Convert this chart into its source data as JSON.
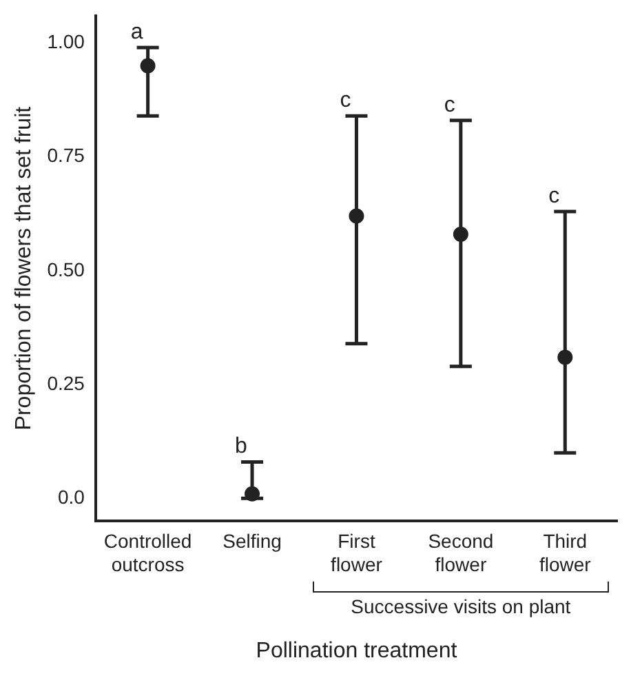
{
  "chart_data": {
    "type": "scatter",
    "xlabel": "Pollination treatment",
    "ylabel": "Proportion of flowers that set fruit",
    "categories": [
      "Controlled\noutcross",
      "Selfing",
      "First\nflower",
      "Second\nflower",
      "Third\nflower"
    ],
    "series": [
      {
        "color": "#222222",
        "values": [
          0.95,
          0.01,
          0.62,
          0.58,
          0.31
        ],
        "errors": [
          [
            0.84,
            0.99
          ],
          [
            0.0,
            0.08
          ],
          [
            0.34,
            0.84
          ],
          [
            0.29,
            0.83
          ],
          [
            0.1,
            0.63
          ]
        ]
      }
    ],
    "ylim": [
      -0.05,
      1.06
    ],
    "yticks": [
      {
        "value": 0,
        "label": "0.0"
      },
      {
        "value": 0.25,
        "label": "0.25"
      },
      {
        "value": 0.5,
        "label": "0.50"
      },
      {
        "value": 0.75,
        "label": "0.75"
      },
      {
        "value": 1,
        "label": "1.00"
      }
    ],
    "marker": "circle",
    "grid": false,
    "legend": false,
    "annotations": [
      {
        "text": "a",
        "x": "Controlled\noutcross",
        "y": 0.99
      },
      {
        "text": "b",
        "x": "Selfing",
        "y": 0.08
      },
      {
        "text": "c",
        "x": "First\nflower",
        "y": 0.84
      },
      {
        "text": "c",
        "x": "Second\nflower",
        "y": 0.83
      },
      {
        "text": "c",
        "x": "Third\nflower",
        "y": 0.63
      },
      "Successive visits on plant"
    ]
  }
}
